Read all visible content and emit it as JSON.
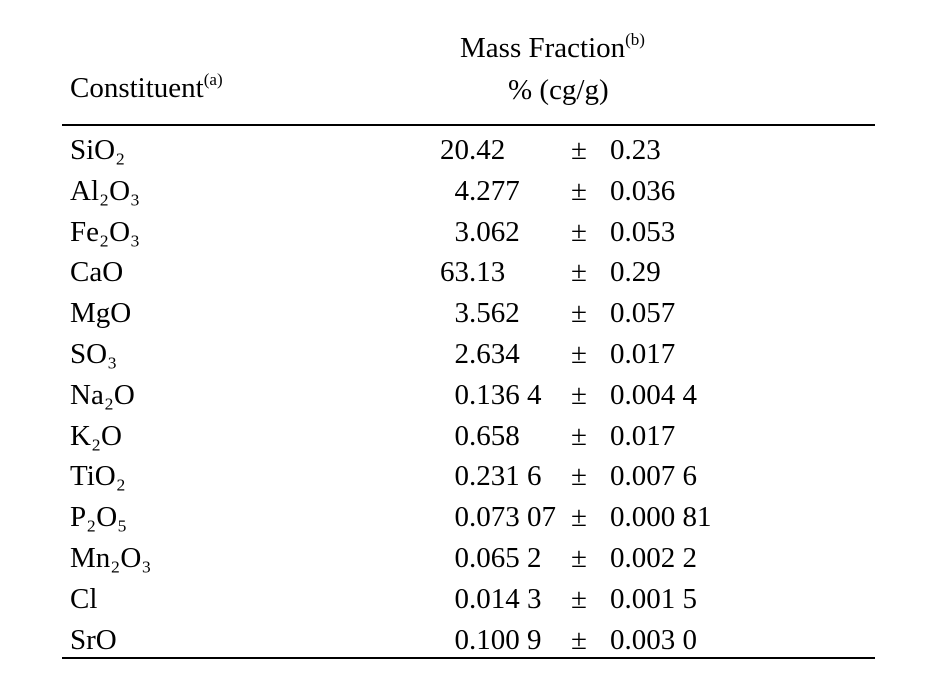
{
  "table": {
    "header": {
      "constituent": "Constituent",
      "constituent_note": "(a)",
      "mass_fraction": "Mass Fraction",
      "mass_fraction_note": "(b)",
      "unit": "% (cg/g)"
    },
    "rows": [
      [
        "SiO₂",
        "20.42",
        "±",
        "0.23"
      ],
      [
        "Al₂O₃",
        "4.277",
        "±",
        "0.036"
      ],
      [
        "Fe₂O₃",
        "3.062",
        "±",
        "0.053"
      ],
      [
        "CaO",
        "63.13",
        "±",
        "0.29"
      ],
      [
        "MgO",
        "3.562",
        "±",
        "0.057"
      ],
      [
        "SO₃",
        "2.634",
        "±",
        "0.017"
      ],
      [
        "Na₂O",
        "0.136 4",
        "±",
        "0.004 4"
      ],
      [
        "K₂O",
        "0.658",
        "±",
        "0.017"
      ],
      [
        "TiO₂",
        "0.231 6",
        "±",
        "0.007 6"
      ],
      [
        "P₂O₅",
        "0.073 07",
        "±",
        "0.000 81"
      ],
      [
        "Mn₂O₃",
        "0.065 2",
        "±",
        "0.002 2"
      ],
      [
        "Cl",
        "0.014 3",
        "±",
        "0.001 5"
      ],
      [
        "SrO",
        "0.100 9",
        "±",
        "0.003 0"
      ]
    ]
  }
}
